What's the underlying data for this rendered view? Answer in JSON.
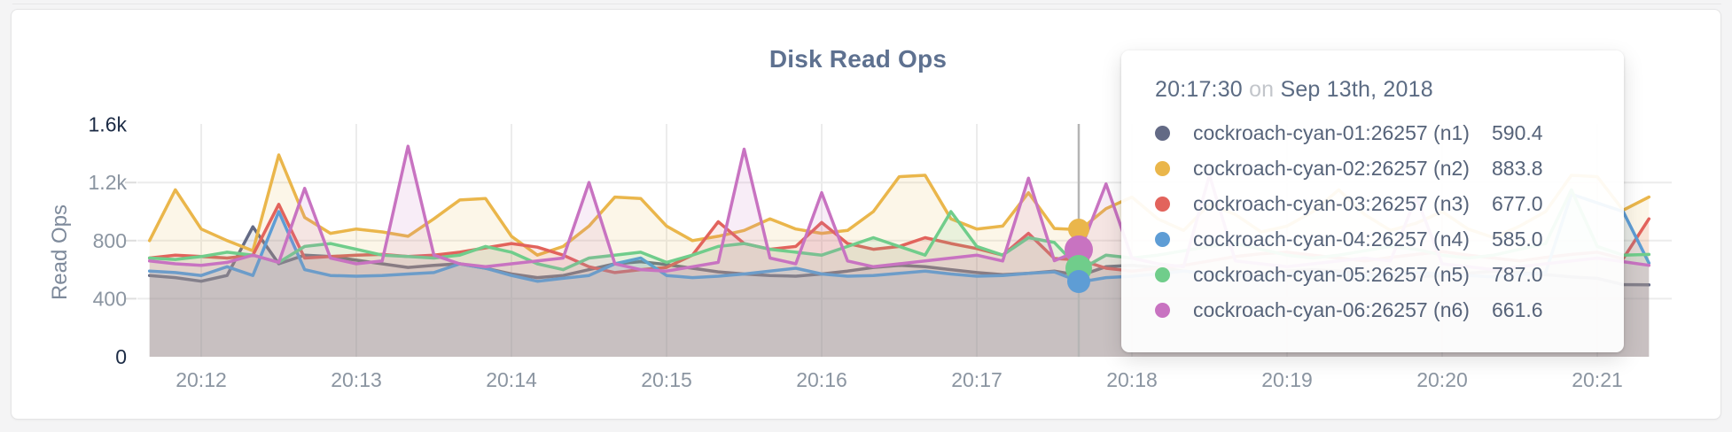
{
  "chart": {
    "title": "Disk Read Ops",
    "y_axis_label": "Read Ops"
  },
  "tooltip": {
    "time": "20:17:30",
    "conj": "on",
    "date": "Sep 13th, 2018",
    "rows": [
      {
        "label": "cockroach-cyan-01:26257 (n1)",
        "value": "590.4",
        "color": "#636a85"
      },
      {
        "label": "cockroach-cyan-02:26257 (n2)",
        "value": "883.8",
        "color": "#eab64b"
      },
      {
        "label": "cockroach-cyan-03:26257 (n3)",
        "value": "677.0",
        "color": "#e2635c"
      },
      {
        "label": "cockroach-cyan-04:26257 (n4)",
        "value": "585.0",
        "color": "#5e9dd5"
      },
      {
        "label": "cockroach-cyan-05:26257 (n5)",
        "value": "787.0",
        "color": "#70cd8b"
      },
      {
        "label": "cockroach-cyan-06:26257 (n6)",
        "value": "661.6",
        "color": "#c873c1"
      }
    ]
  },
  "hover": {
    "time": "20:17:30",
    "crosshair_x": 1217,
    "dots": [
      {
        "series": "cockroach-cyan-02:26257 (n2)",
        "color": "#eab64b",
        "y": 259,
        "r": 12
      },
      {
        "series": "cockroach-cyan-03:26257 (n3)",
        "color": "#e2635c",
        "y": 293,
        "r": 12
      },
      {
        "series": "cockroach-cyan-06:26257 (n6)",
        "color": "#c873c1",
        "y": 282,
        "r": 16
      },
      {
        "series": "cockroach-cyan-05:26257 (n5)",
        "color": "#70cd8b",
        "y": 303,
        "r": 15
      },
      {
        "series": "cockroach-cyan-04:26257 (n4)",
        "color": "#5e9dd5",
        "y": 318,
        "r": 13
      }
    ]
  },
  "chart_data": {
    "type": "line",
    "title": "Disk Read Ops",
    "xlabel": "",
    "ylabel": "Read Ops",
    "ylim": [
      0,
      1600
    ],
    "grid": true,
    "legend_position": "tooltip-only",
    "x_start": "20:11:40",
    "x_step_seconds": 10,
    "x_tick_labels": [
      {
        "label": "20:12",
        "minute": 0
      },
      {
        "label": "20:13",
        "minute": 1
      },
      {
        "label": "20:14",
        "minute": 2
      },
      {
        "label": "20:15",
        "minute": 3
      },
      {
        "label": "20:16",
        "minute": 4
      },
      {
        "label": "20:17",
        "minute": 5
      },
      {
        "label": "20:18",
        "minute": 6
      },
      {
        "label": "20:19",
        "minute": 7
      },
      {
        "label": "20:20",
        "minute": 8
      },
      {
        "label": "20:21",
        "minute": 9
      }
    ],
    "y_tick_items": [
      {
        "label": "1.6k",
        "value": 1600,
        "strong": true
      },
      {
        "label": "1.2k",
        "value": 1200,
        "strong": false
      },
      {
        "label": "800",
        "value": 800,
        "strong": false
      },
      {
        "label": "400",
        "value": 400,
        "strong": false
      },
      {
        "label": "0",
        "value": 0,
        "strong": true
      }
    ],
    "hover_time": "20:17:30",
    "hover_values": {
      "n1": 590.4,
      "n2": 883.8,
      "n3": 677.0,
      "n4": 585.0,
      "n5": 787.0,
      "n6": 661.6
    },
    "series": [
      {
        "name": "cockroach-cyan-01:26257 (n1)",
        "short": "n1",
        "color": "#636a85",
        "values": [
          560,
          545,
          520,
          560,
          895,
          640,
          700,
          690,
          665,
          640,
          615,
          630,
          640,
          610,
          570,
          545,
          560,
          600,
          640,
          655,
          635,
          610,
          585,
          570,
          560,
          555,
          570,
          590,
          615,
          630,
          620,
          600,
          580,
          565,
          575,
          590.4,
          560,
          620,
          630,
          615,
          590,
          570,
          560,
          575,
          590,
          600,
          590,
          575,
          560,
          550,
          560,
          575,
          590,
          580,
          565,
          550,
          540,
          497,
          495
        ]
      },
      {
        "name": "cockroach-cyan-02:26257 (n2)",
        "short": "n2",
        "color": "#eab64b",
        "values": [
          800,
          1150,
          880,
          800,
          730,
          1390,
          960,
          850,
          880,
          860,
          830,
          950,
          1080,
          1090,
          830,
          700,
          760,
          900,
          1100,
          1090,
          900,
          800,
          830,
          870,
          950,
          880,
          850,
          870,
          1000,
          1240,
          1250,
          950,
          880,
          900,
          1130,
          883.8,
          875,
          1020,
          1100,
          950,
          870,
          1050,
          980,
          860,
          900,
          1000,
          1150,
          980,
          870,
          920,
          1000,
          880,
          820,
          900,
          1000,
          1250,
          1240,
          1010,
          1100
        ]
      },
      {
        "name": "cockroach-cyan-03:26257 (n3)",
        "short": "n3",
        "color": "#e2635c",
        "values": [
          680,
          700,
          690,
          680,
          700,
          1050,
          680,
          690,
          700,
          705,
          690,
          700,
          720,
          750,
          780,
          755,
          700,
          620,
          580,
          600,
          615,
          700,
          930,
          780,
          740,
          760,
          925,
          780,
          740,
          760,
          820,
          780,
          745,
          700,
          850,
          677,
          667,
          610,
          590,
          610,
          630,
          660,
          690,
          710,
          720,
          700,
          680,
          660,
          685,
          705,
          725,
          700,
          680,
          660,
          685,
          705,
          720,
          675,
          950
        ]
      },
      {
        "name": "cockroach-cyan-04:26257 (n4)",
        "short": "n4",
        "color": "#5e9dd5",
        "values": [
          590,
          580,
          560,
          620,
          560,
          1000,
          600,
          560,
          555,
          560,
          570,
          580,
          640,
          610,
          560,
          520,
          540,
          560,
          640,
          680,
          560,
          545,
          555,
          570,
          590,
          610,
          570,
          555,
          560,
          575,
          590,
          570,
          555,
          560,
          575,
          585,
          515,
          545,
          555,
          570,
          590,
          575,
          560,
          550,
          565,
          580,
          570,
          555,
          565,
          580,
          570,
          560,
          550,
          565,
          580,
          1120,
          1060,
          1000,
          645
        ]
      },
      {
        "name": "cockroach-cyan-05:26257 (n5)",
        "short": "n5",
        "color": "#70cd8b",
        "values": [
          680,
          670,
          690,
          720,
          700,
          650,
          760,
          780,
          740,
          700,
          690,
          680,
          700,
          760,
          720,
          640,
          600,
          680,
          700,
          720,
          650,
          700,
          760,
          780,
          740,
          720,
          700,
          760,
          820,
          760,
          700,
          1000,
          760,
          700,
          820,
          787,
          600,
          700,
          680,
          700,
          730,
          760,
          780,
          740,
          700,
          680,
          700,
          730,
          760,
          740,
          700,
          680,
          700,
          740,
          780,
          1150,
          760,
          700,
          705
        ]
      },
      {
        "name": "cockroach-cyan-06:26257 (n6)",
        "short": "n6",
        "color": "#c873c1",
        "values": [
          660,
          640,
          630,
          650,
          700,
          650,
          1160,
          680,
          640,
          660,
          1450,
          700,
          640,
          620,
          640,
          660,
          680,
          1200,
          640,
          600,
          590,
          620,
          650,
          1430,
          680,
          640,
          1130,
          660,
          620,
          640,
          660,
          680,
          700,
          660,
          1230,
          661.6,
          735,
          1190,
          680,
          640,
          620,
          1250,
          660,
          640,
          620,
          640,
          660,
          680,
          660,
          1100,
          640,
          620,
          600,
          620,
          640,
          660,
          680,
          655,
          630
        ]
      }
    ]
  }
}
